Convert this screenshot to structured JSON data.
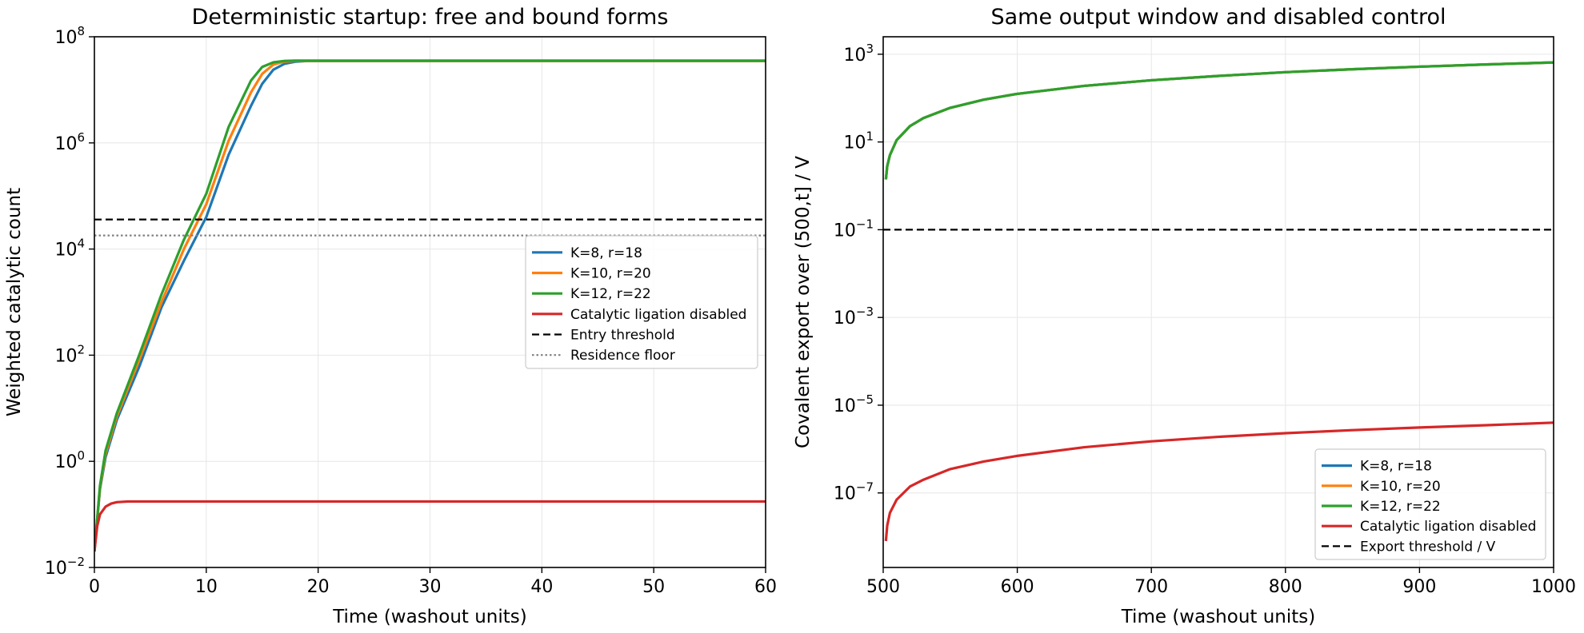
{
  "chart_data": [
    {
      "type": "line",
      "title": "Deterministic startup: free and bound forms",
      "xlabel": "Time (washout units)",
      "ylabel": "Weighted catalytic count",
      "xlim": [
        0,
        60
      ],
      "ylim": [
        0.01,
        100000000
      ],
      "yscale": "log",
      "grid": true,
      "legend_position": "center-right",
      "x_ticks": [
        0,
        10,
        20,
        30,
        40,
        50,
        60
      ],
      "x_tick_labels": [
        "0",
        "10",
        "20",
        "30",
        "40",
        "50",
        "60"
      ],
      "y_ticks": [
        0.01,
        1,
        100,
        10000,
        1000000,
        100000000
      ],
      "y_tick_labels": [
        {
          "base": "10",
          "exp": "−2"
        },
        {
          "base": "10",
          "exp": "0"
        },
        {
          "base": "10",
          "exp": "2"
        },
        {
          "base": "10",
          "exp": "4"
        },
        {
          "base": "10",
          "exp": "6"
        },
        {
          "base": "10",
          "exp": "8"
        }
      ],
      "series": [
        {
          "name": "K=8, r=18",
          "color": "#1f77b4",
          "style": "solid",
          "x": [
            0,
            0.5,
            1,
            2,
            4,
            6,
            8,
            10,
            12,
            14,
            15,
            16,
            17,
            18,
            19,
            20,
            22,
            25,
            30,
            40,
            50,
            60
          ],
          "y": [
            0.02,
            0.3,
            1.2,
            6,
            60,
            800,
            6000,
            40000,
            600000,
            5000000,
            13000000,
            24000000,
            31000000,
            34000000,
            35000000,
            35000000,
            35000000,
            35000000,
            35000000,
            35000000,
            35000000,
            35000000
          ]
        },
        {
          "name": "K=10, r=20",
          "color": "#ff7f0e",
          "style": "solid",
          "x": [
            0,
            0.5,
            1,
            2,
            4,
            6,
            8,
            10,
            12,
            14,
            15,
            16,
            17,
            18,
            19,
            20,
            22,
            25,
            30,
            40,
            50,
            60
          ],
          "y": [
            0.02,
            0.32,
            1.4,
            7,
            80,
            1000,
            10000,
            70000,
            1100000,
            9000000,
            20000000,
            30000000,
            34000000,
            35000000,
            35000000,
            35000000,
            35000000,
            35000000,
            35000000,
            35000000,
            35000000,
            35000000
          ]
        },
        {
          "name": "K=12, r=22",
          "color": "#2ca02c",
          "style": "solid",
          "x": [
            0,
            0.5,
            1,
            2,
            4,
            6,
            8,
            10,
            12,
            14,
            15,
            16,
            17,
            18,
            19,
            20,
            22,
            25,
            30,
            40,
            50,
            60
          ],
          "y": [
            0.02,
            0.35,
            1.6,
            8,
            100,
            1400,
            15000,
            110000,
            2000000,
            15000000,
            27000000,
            33000000,
            35000000,
            35500000,
            35500000,
            35500000,
            35500000,
            35500000,
            35500000,
            35500000,
            35500000,
            35500000
          ]
        },
        {
          "name": "Catalytic ligation disabled",
          "color": "#d62728",
          "style": "solid",
          "x": [
            0,
            0.25,
            0.5,
            1,
            1.5,
            2,
            3,
            4,
            6,
            10,
            20,
            40,
            60
          ],
          "y": [
            0.02,
            0.06,
            0.1,
            0.14,
            0.16,
            0.17,
            0.175,
            0.175,
            0.175,
            0.175,
            0.175,
            0.175,
            0.175
          ]
        },
        {
          "name": "Entry threshold",
          "color": "#000000",
          "style": "dashed",
          "x": [
            0,
            60
          ],
          "y": [
            36000,
            36000
          ]
        },
        {
          "name": "Residence floor",
          "color": "#808080",
          "style": "dotted",
          "x": [
            0,
            60
          ],
          "y": [
            18000,
            18000
          ]
        }
      ]
    },
    {
      "type": "line",
      "title": "Same output window and disabled control",
      "xlabel": "Time (washout units)",
      "ylabel": "Covalent export over (500,t] / V",
      "xlim": [
        500,
        1000
      ],
      "ylim": [
        2e-09,
        2500
      ],
      "yscale": "log",
      "grid": true,
      "legend_position": "lower-right",
      "x_ticks": [
        500,
        600,
        700,
        800,
        900,
        1000
      ],
      "x_tick_labels": [
        "500",
        "600",
        "700",
        "800",
        "900",
        "1000"
      ],
      "y_ticks": [
        1e-07,
        1e-05,
        0.001,
        0.1,
        10,
        1000
      ],
      "y_tick_labels": [
        {
          "base": "10",
          "exp": "−7"
        },
        {
          "base": "10",
          "exp": "−5"
        },
        {
          "base": "10",
          "exp": "−3"
        },
        {
          "base": "10",
          "exp": "−1"
        },
        {
          "base": "10",
          "exp": "1"
        },
        {
          "base": "10",
          "exp": "3"
        }
      ],
      "series": [
        {
          "name": "K=8, r=18",
          "color": "#1f77b4",
          "style": "solid",
          "x": [
            502,
            503,
            505,
            510,
            520,
            530,
            550,
            575,
            600,
            650,
            700,
            750,
            800,
            850,
            900,
            950,
            1000
          ],
          "y": [
            1.4,
            2.8,
            5,
            11,
            23,
            35,
            60,
            92,
            125,
            190,
            255,
            320,
            390,
            455,
            520,
            585,
            650
          ]
        },
        {
          "name": "K=10, r=20",
          "color": "#ff7f0e",
          "style": "solid",
          "x": [
            502,
            503,
            505,
            510,
            520,
            530,
            550,
            575,
            600,
            650,
            700,
            750,
            800,
            850,
            900,
            950,
            1000
          ],
          "y": [
            1.4,
            2.8,
            5,
            11,
            23,
            35,
            60,
            92,
            125,
            190,
            255,
            320,
            390,
            455,
            520,
            585,
            650
          ]
        },
        {
          "name": "K=12, r=22",
          "color": "#2ca02c",
          "style": "solid",
          "x": [
            502,
            503,
            505,
            510,
            520,
            530,
            550,
            575,
            600,
            650,
            700,
            750,
            800,
            850,
            900,
            950,
            1000
          ],
          "y": [
            1.4,
            2.8,
            5,
            11,
            23,
            35,
            60,
            92,
            125,
            190,
            255,
            320,
            390,
            455,
            520,
            585,
            650
          ]
        },
        {
          "name": "Catalytic ligation disabled",
          "color": "#d62728",
          "style": "solid",
          "x": [
            502,
            503,
            505,
            510,
            520,
            530,
            550,
            575,
            600,
            650,
            700,
            750,
            800,
            850,
            900,
            950,
            1000
          ],
          "y": [
            8e-09,
            1.8e-08,
            3.5e-08,
            7e-08,
            1.4e-07,
            2e-07,
            3.5e-07,
            5.2e-07,
            7e-07,
            1.1e-06,
            1.5e-06,
            1.9e-06,
            2.3e-06,
            2.7e-06,
            3.1e-06,
            3.5e-06,
            4e-06
          ]
        },
        {
          "name": "Export threshold / V",
          "color": "#000000",
          "style": "dashed",
          "x": [
            500,
            1000
          ],
          "y": [
            0.1,
            0.1
          ]
        }
      ]
    }
  ]
}
